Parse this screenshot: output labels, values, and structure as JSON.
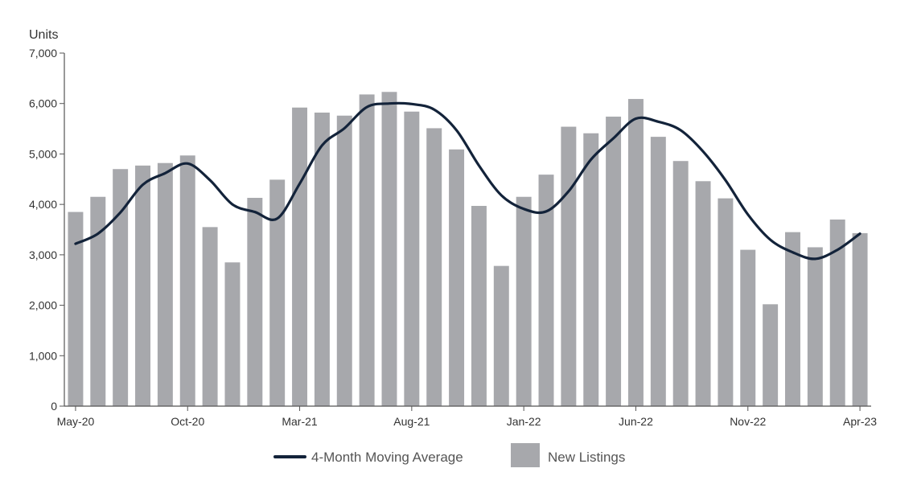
{
  "chart_data": {
    "type": "bar",
    "title": "",
    "xlabel": "",
    "ylabel": "Units",
    "ylim": [
      0,
      7000
    ],
    "yticks": [
      "0",
      "1,000",
      "2,000",
      "3,000",
      "4,000",
      "5,000",
      "6,000",
      "7,000"
    ],
    "ytick_values": [
      0,
      1000,
      2000,
      3000,
      4000,
      5000,
      6000,
      7000
    ],
    "categories": [
      "May-20",
      "Jun-20",
      "Jul-20",
      "Aug-20",
      "Sep-20",
      "Oct-20",
      "Nov-20",
      "Dec-20",
      "Jan-21",
      "Feb-21",
      "Mar-21",
      "Apr-21",
      "May-21",
      "Jun-21",
      "Jul-21",
      "Aug-21",
      "Sep-21",
      "Oct-21",
      "Nov-21",
      "Dec-21",
      "Jan-22",
      "Feb-22",
      "Mar-22",
      "Apr-22",
      "May-22",
      "Jun-22",
      "Jul-22",
      "Aug-22",
      "Sep-22",
      "Oct-22",
      "Nov-22",
      "Dec-22",
      "Jan-23",
      "Feb-23",
      "Mar-23",
      "Apr-23"
    ],
    "xtick_labels_shown": [
      "May-20",
      "Oct-20",
      "Mar-21",
      "Aug-21",
      "Jan-22",
      "Jun-22",
      "Nov-22",
      "Apr-23"
    ],
    "series": [
      {
        "name": "New Listings",
        "kind": "bar",
        "color": "#A7A8AC",
        "values": [
          3850,
          4150,
          4700,
          4770,
          4820,
          4970,
          3550,
          2850,
          4130,
          4490,
          5920,
          5820,
          5760,
          6180,
          6230,
          5840,
          5510,
          5090,
          3970,
          2780,
          4150,
          4590,
          5540,
          5410,
          5740,
          6090,
          5340,
          4860,
          4460,
          4120,
          3100,
          2020,
          3450,
          3150,
          3700,
          3430
        ]
      },
      {
        "name": "4-Month Moving Average",
        "kind": "line",
        "color": "#13233A",
        "values": [
          3220,
          3420,
          3840,
          4390,
          4620,
          4810,
          4480,
          4000,
          3850,
          3720,
          4410,
          5170,
          5510,
          5930,
          6000,
          5990,
          5880,
          5470,
          4770,
          4180,
          3910,
          3860,
          4260,
          4890,
          5310,
          5700,
          5640,
          5470,
          5050,
          4480,
          3800,
          3300,
          3050,
          2920,
          3100,
          3420
        ]
      }
    ],
    "legend": {
      "placement": "bottom-center",
      "items": [
        "4-Month Moving Average",
        "New Listings"
      ]
    },
    "grid": false
  }
}
